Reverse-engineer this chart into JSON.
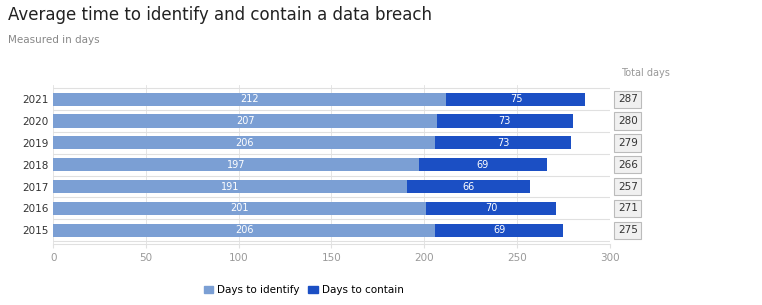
{
  "title": "Average time to identify and contain a data breach",
  "subtitle": "Measured in days",
  "years": [
    "2021",
    "2020",
    "2019",
    "2018",
    "2017",
    "2016",
    "2015"
  ],
  "days_to_identify": [
    212,
    207,
    206,
    197,
    191,
    201,
    206
  ],
  "days_to_contain": [
    75,
    73,
    73,
    69,
    66,
    70,
    69
  ],
  "total_days": [
    287,
    280,
    279,
    266,
    257,
    271,
    275
  ],
  "color_identify": "#7b9fd4",
  "color_contain": "#1b4fc4",
  "xlim": [
    0,
    300
  ],
  "xticks": [
    0,
    50,
    100,
    150,
    200,
    250,
    300
  ],
  "legend_labels": [
    "Days to identify",
    "Days to contain"
  ],
  "bar_height": 0.6,
  "background_color": "#ffffff",
  "title_fontsize": 12,
  "subtitle_fontsize": 7.5,
  "label_fontsize": 7,
  "axis_fontsize": 7.5,
  "total_fontsize": 7.5,
  "grid_color": "#e0e0e0",
  "text_color": "#333333",
  "axis_color": "#999999"
}
